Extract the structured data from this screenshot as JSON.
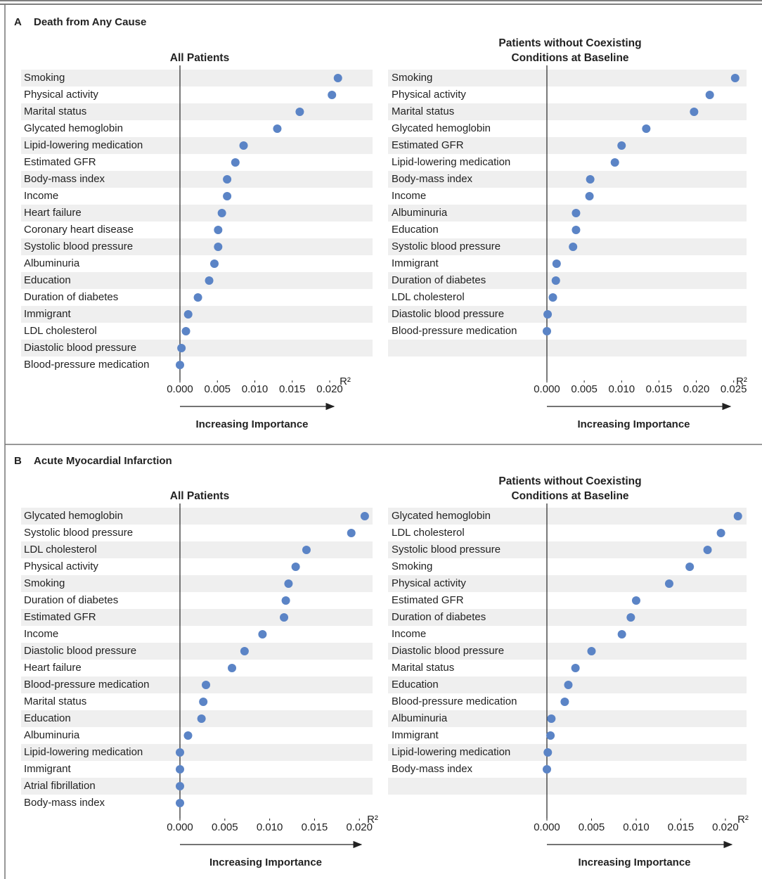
{
  "chart_data": [
    {
      "type": "dot",
      "panel_letter": "A",
      "panel_title": "Death from Any Cause",
      "title": "All Patients",
      "categories": [
        "Smoking",
        "Physical activity",
        "Marital status",
        "Glycated hemoglobin",
        "Lipid-lowering medication",
        "Estimated GFR",
        "Body-mass index",
        "Income",
        "Heart failure",
        "Coronary heart disease",
        "Systolic blood pressure",
        "Albuminuria",
        "Education",
        "Duration of diabetes",
        "Immigrant",
        "LDL cholesterol",
        "Diastolic blood pressure",
        "Blood-pressure medication"
      ],
      "values": [
        0.0211,
        0.0203,
        0.016,
        0.013,
        0.0085,
        0.0074,
        0.0063,
        0.0063,
        0.0056,
        0.0051,
        0.0051,
        0.0046,
        0.0039,
        0.0024,
        0.0011,
        0.0008,
        0.0002,
        0.0
      ],
      "color": "#5b84c6",
      "xlim": [
        0,
        0.0215
      ],
      "xticks": [
        {
          "value": 0,
          "label": "0.000"
        },
        {
          "value": 0.005,
          "label": "0.005"
        },
        {
          "value": 0.01,
          "label": "0.010"
        },
        {
          "value": 0.015,
          "label": "0.015"
        },
        {
          "value": 0.02,
          "label": "0.020"
        }
      ],
      "x_axis_label": "R²",
      "annotation": "Increasing Importance"
    },
    {
      "type": "dot",
      "title": "Patients without Coexisting Conditions at Baseline",
      "categories": [
        "Smoking",
        "Physical activity",
        "Marital status",
        "Glycated hemoglobin",
        "Estimated GFR",
        "Lipid-lowering medication",
        "Body-mass index",
        "Income",
        "Albuminuria",
        "Education",
        "Systolic blood pressure",
        "Immigrant",
        "Duration of diabetes",
        "LDL cholesterol",
        "Diastolic blood pressure",
        "Blood-pressure medication"
      ],
      "values": [
        0.0252,
        0.0218,
        0.0197,
        0.0133,
        0.01,
        0.0091,
        0.0058,
        0.0057,
        0.0039,
        0.0039,
        0.0035,
        0.0013,
        0.0012,
        0.0008,
        0.0001,
        0.0
      ],
      "color": "#5b84c6",
      "xlim": [
        0,
        0.0255
      ],
      "xticks": [
        {
          "value": 0,
          "label": "0.000"
        },
        {
          "value": 0.005,
          "label": "0.005"
        },
        {
          "value": 0.01,
          "label": "0.010"
        },
        {
          "value": 0.015,
          "label": "0.015"
        },
        {
          "value": 0.02,
          "label": "0.020"
        },
        {
          "value": 0.025,
          "label": "0.025"
        }
      ],
      "x_axis_label": "R²",
      "annotation": "Increasing Importance"
    },
    {
      "type": "dot",
      "panel_letter": "B",
      "panel_title": "Acute Myocardial Infarction",
      "title": "All Patients",
      "categories": [
        "Glycated hemoglobin",
        "Systolic blood pressure",
        "LDL cholesterol",
        "Physical activity",
        "Smoking",
        "Duration of diabetes",
        "Estimated GFR",
        "Income",
        "Diastolic blood pressure",
        "Heart failure",
        "Blood-pressure medication",
        "Marital status",
        "Education",
        "Albuminuria",
        "Lipid-lowering medication",
        "Immigrant",
        "Atrial fibrillation",
        "Body-mass index"
      ],
      "values": [
        0.0206,
        0.0191,
        0.0141,
        0.0129,
        0.0121,
        0.0118,
        0.0116,
        0.0092,
        0.0072,
        0.0058,
        0.0029,
        0.0026,
        0.0024,
        0.0009,
        0.0,
        0.0,
        0.0,
        0.0
      ],
      "color": "#5b84c6",
      "xlim": [
        0,
        0.021
      ],
      "xticks": [
        {
          "value": 0,
          "label": "0.000"
        },
        {
          "value": 0.005,
          "label": "0.005"
        },
        {
          "value": 0.01,
          "label": "0.010"
        },
        {
          "value": 0.015,
          "label": "0.015"
        },
        {
          "value": 0.02,
          "label": "0.020"
        }
      ],
      "x_axis_label": "R²",
      "annotation": "Increasing Importance"
    },
    {
      "type": "dot",
      "title": "Patients without Coexisting Conditions at Baseline",
      "categories": [
        "Glycated hemoglobin",
        "LDL cholesterol",
        "Systolic blood pressure",
        "Smoking",
        "Physical activity",
        "Estimated GFR",
        "Duration of diabetes",
        "Income",
        "Diastolic blood pressure",
        "Marital status",
        "Education",
        "Blood-pressure medication",
        "Albuminuria",
        "Immigrant",
        "Lipid-lowering medication",
        "Body-mass index"
      ],
      "values": [
        0.0214,
        0.0195,
        0.018,
        0.016,
        0.0137,
        0.01,
        0.0094,
        0.0084,
        0.005,
        0.0032,
        0.0024,
        0.002,
        0.0005,
        0.0004,
        0.0001,
        0.0
      ],
      "color": "#5b84c6",
      "xlim": [
        0,
        0.0215
      ],
      "xticks": [
        {
          "value": 0,
          "label": "0.000"
        },
        {
          "value": 0.005,
          "label": "0.005"
        },
        {
          "value": 0.01,
          "label": "0.010"
        },
        {
          "value": 0.015,
          "label": "0.015"
        },
        {
          "value": 0.02,
          "label": "0.020"
        }
      ],
      "x_axis_label": "R²",
      "annotation": "Increasing Importance"
    }
  ]
}
